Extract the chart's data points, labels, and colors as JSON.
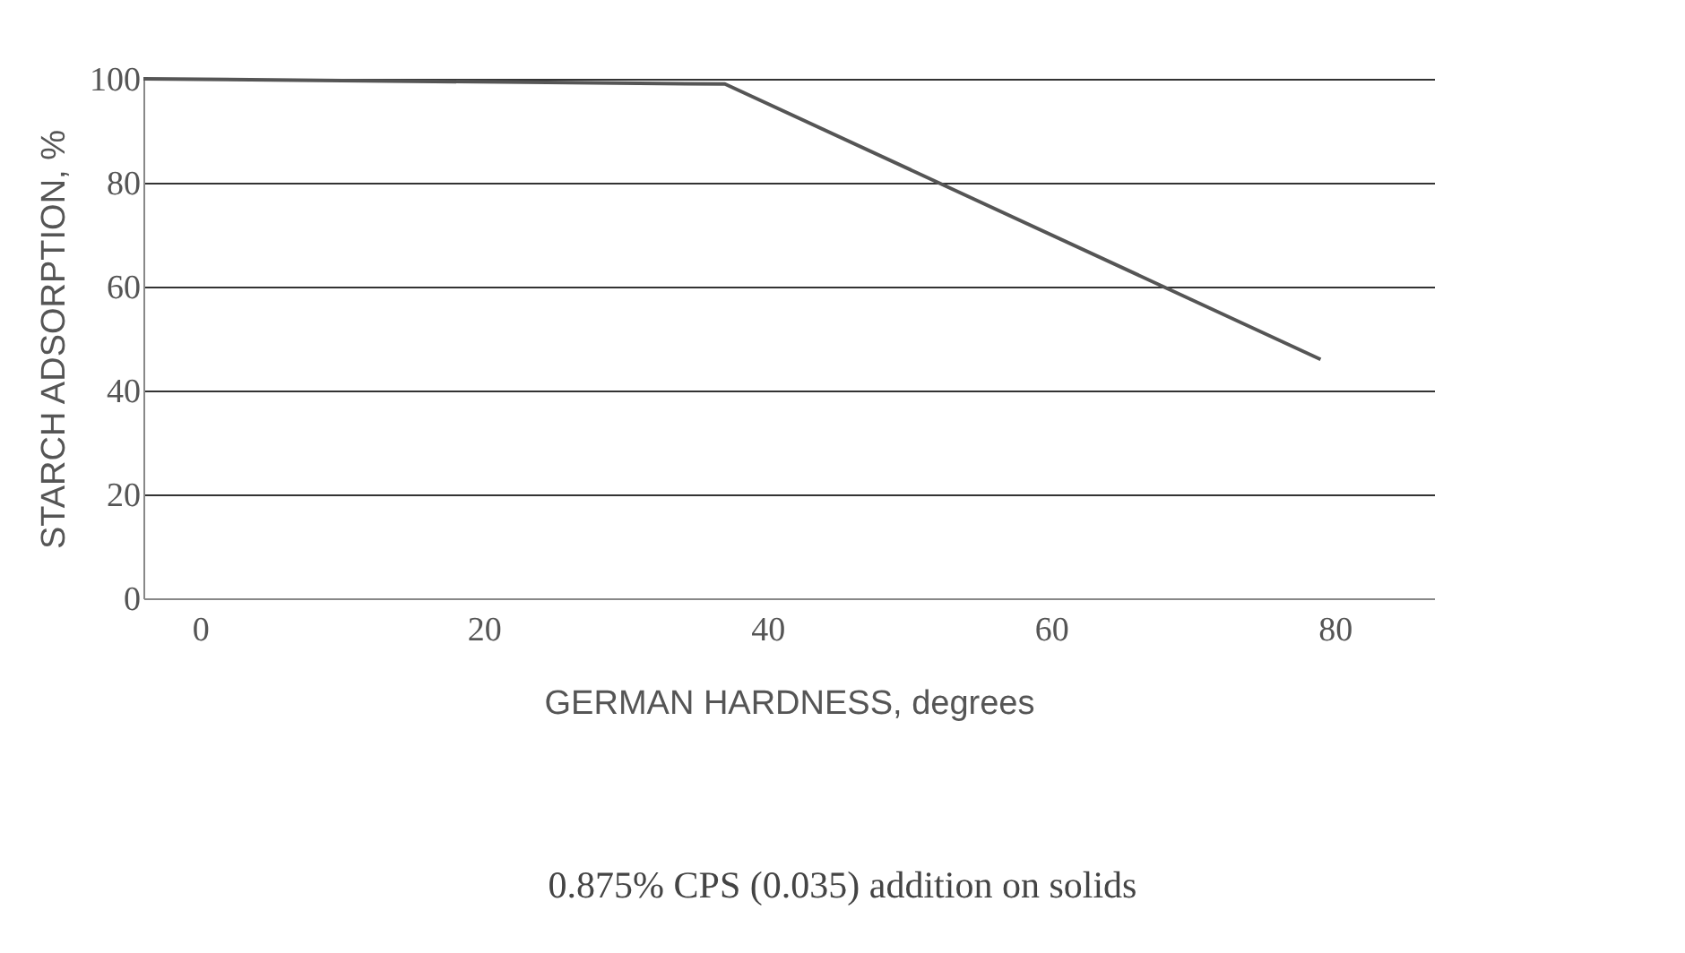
{
  "chart_data": {
    "type": "line",
    "xlabel": "GERMAN HARDNESS, degrees",
    "ylabel": "STARCH ADSORPTION, %",
    "annotations": [
      "0.875% CPS (0.035) addition on solids"
    ],
    "x": [
      -4,
      37,
      79
    ],
    "series": [
      {
        "color": "#555555",
        "values": [
          100,
          99,
          46
        ]
      }
    ],
    "xlim": [
      -4,
      87
    ],
    "xticks": [
      0,
      20,
      40,
      60,
      80
    ],
    "ylim": [
      0,
      100
    ],
    "yticks": [
      0,
      20,
      40,
      60,
      80,
      100
    ],
    "grid": "y",
    "legend": false,
    "marker": "none",
    "line_style": "solid"
  }
}
